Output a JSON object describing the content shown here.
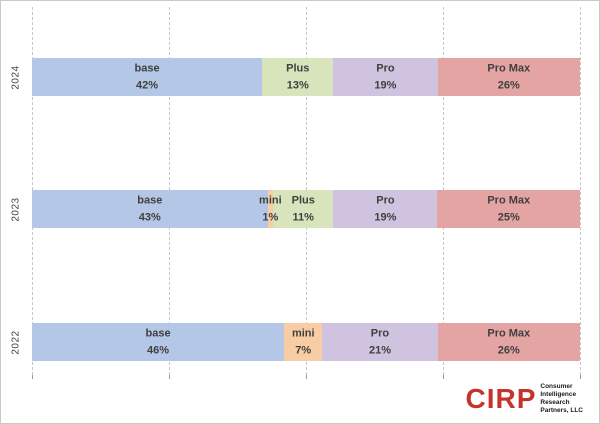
{
  "chart_data": {
    "type": "bar",
    "orientation": "horizontal-stacked",
    "title": "",
    "categories": [
      "2024",
      "2023",
      "2022"
    ],
    "x_axis": {
      "min": 0,
      "max": 100,
      "gridlines_pct": [
        0,
        25,
        50,
        75,
        100
      ],
      "grid_style": "dashed"
    },
    "legend": "none",
    "palette": {
      "base": "#b4c7e7",
      "mini": "#f8cda4",
      "Plus": "#d8e4bc",
      "Pro": "#cfc3e0",
      "Pro Max": "#e5a4a4"
    },
    "rows": [
      {
        "year": "2024",
        "segments": [
          {
            "label": "base",
            "value": 42,
            "display": "42%",
            "color": "#b4c7e7"
          },
          {
            "label": "Plus",
            "value": 13,
            "display": "13%",
            "color": "#d8e4bc"
          },
          {
            "label": "Pro",
            "value": 19,
            "display": "19%",
            "color": "#cfc3e0"
          },
          {
            "label": "Pro Max",
            "value": 26,
            "display": "26%",
            "color": "#e5a4a4"
          }
        ]
      },
      {
        "year": "2023",
        "segments": [
          {
            "label": "base",
            "value": 43,
            "display": "43%",
            "color": "#b4c7e7"
          },
          {
            "label": "mini",
            "value": 1,
            "display": "1%",
            "color": "#f8cda4"
          },
          {
            "label": "Plus",
            "value": 11,
            "display": "11%",
            "color": "#d8e4bc"
          },
          {
            "label": "Pro",
            "value": 19,
            "display": "19%",
            "color": "#cfc3e0"
          },
          {
            "label": "Pro Max",
            "value": 25,
            "display": "25%",
            "color": "#e5a4a4"
          }
        ]
      },
      {
        "year": "2022",
        "segments": [
          {
            "label": "base",
            "value": 46,
            "display": "46%",
            "color": "#b4c7e7"
          },
          {
            "label": "mini",
            "value": 7,
            "display": "7%",
            "color": "#f8cda4"
          },
          {
            "label": "Pro",
            "value": 21,
            "display": "21%",
            "color": "#cfc3e0"
          },
          {
            "label": "Pro Max",
            "value": 26,
            "display": "26%",
            "color": "#e5a4a4"
          }
        ]
      }
    ],
    "text_color": "#3f3f3f"
  },
  "logo": {
    "brand": "CIRP",
    "brand_color": "#c5342c",
    "lines": [
      "Consumer",
      "Intelligence",
      "Research",
      "Partners, LLC"
    ]
  }
}
